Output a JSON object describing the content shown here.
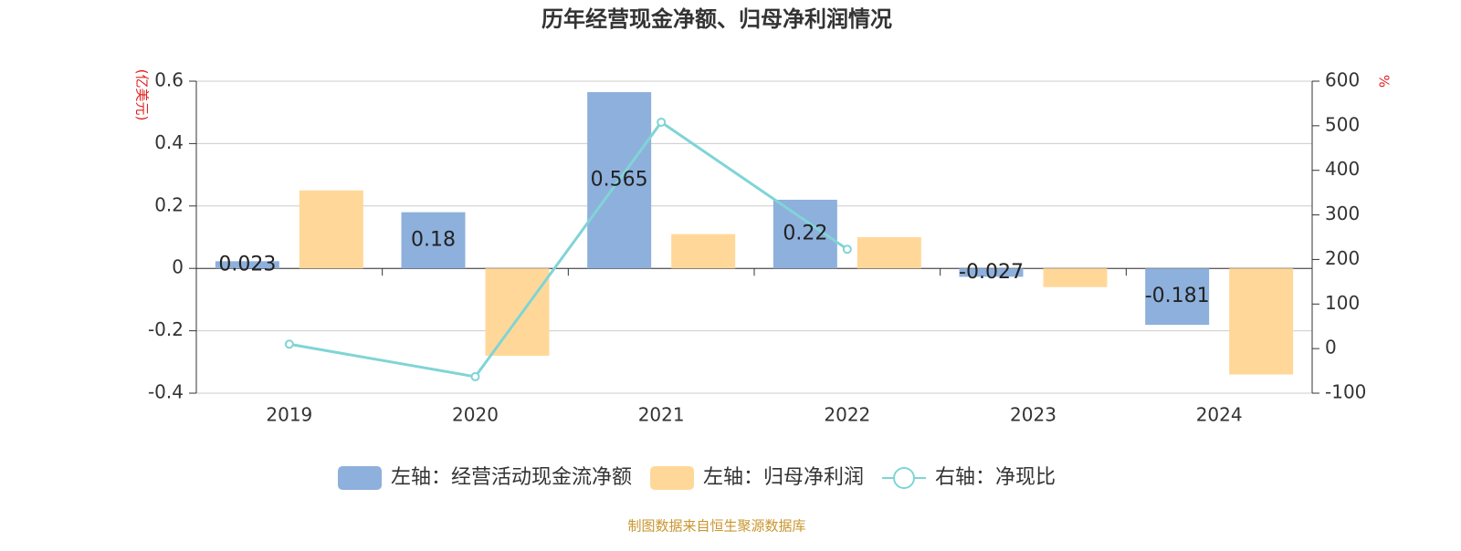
{
  "chart_data": {
    "type": "bar",
    "title": "历年经营现金净额、归母净利润情况",
    "y_label": "(亿美元)",
    "y2_label": "%",
    "categories": [
      "2019",
      "2020",
      "2021",
      "2022",
      "2023",
      "2024"
    ],
    "series": [
      {
        "name": "左轴：经营活动现金流净额",
        "type": "bar",
        "color": "#8eb0dc",
        "values": [
          0.023,
          0.18,
          0.565,
          0.22,
          -0.027,
          -0.181
        ],
        "show_labels": true
      },
      {
        "name": "左轴：归母净利润",
        "type": "bar",
        "color": "#ffd899",
        "values": [
          0.25,
          -0.28,
          0.11,
          0.1,
          -0.06,
          -0.34
        ]
      },
      {
        "name": "右轴：净现比",
        "type": "line",
        "axis": "y2",
        "color": "#80d4d6",
        "values": [
          10,
          -63,
          508,
          223,
          null,
          null
        ]
      }
    ],
    "ylim": [
      -0.4,
      0.6
    ],
    "yticks": [
      -0.4,
      -0.2,
      0,
      0.2,
      0.4,
      0.6
    ],
    "y2lim": [
      -100,
      600
    ],
    "y2ticks": [
      -100,
      0,
      100,
      200,
      300,
      400,
      500,
      600
    ],
    "grid": true,
    "source": "制图数据来自恒生聚源数据库"
  }
}
